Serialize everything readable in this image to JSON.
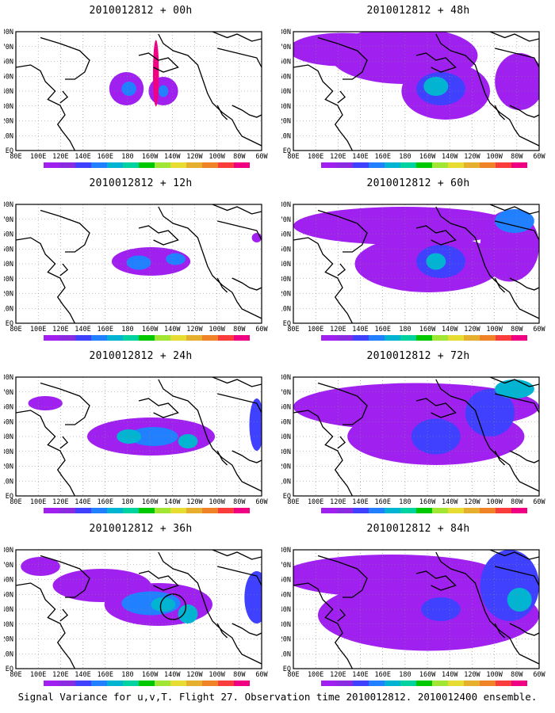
{
  "figure": {
    "footer": "Signal Variance for u,v,T. Flight 27. Observation time 2010012812. 2010012400 ensemble."
  },
  "axes": {
    "lat_labels": [
      "80N",
      "70N",
      "60N",
      "50N",
      "40N",
      "30N",
      "20N",
      "10N",
      "EQ"
    ],
    "lon_labels": [
      "80E",
      "100E",
      "120E",
      "140E",
      "160E",
      "180",
      "160W",
      "140W",
      "120W",
      "100W",
      "80W",
      "60W"
    ]
  },
  "colorbar": {
    "levels": [
      "1.6",
      "2.2",
      "3.1",
      "4",
      "5.1",
      "6.3",
      "7.5",
      "9",
      "11",
      "14",
      "21",
      "29",
      "40"
    ],
    "colors": [
      "#a020f0",
      "#8a2be2",
      "#4040ff",
      "#2080ff",
      "#00b4d2",
      "#00d2a0",
      "#00c800",
      "#a0e632",
      "#e6dc32",
      "#e6af2d",
      "#f08228",
      "#fa3c3c",
      "#f00082"
    ]
  },
  "panels": [
    {
      "title": "2010012812 + 00h"
    },
    {
      "title": "2010012812 + 48h"
    },
    {
      "title": "2010012812 + 12h"
    },
    {
      "title": "2010012812 + 60h"
    },
    {
      "title": "2010012812 + 24h"
    },
    {
      "title": "2010012812 + 72h"
    },
    {
      "title": "2010012812 + 36h"
    },
    {
      "title": "2010012812 + 84h"
    }
  ]
}
